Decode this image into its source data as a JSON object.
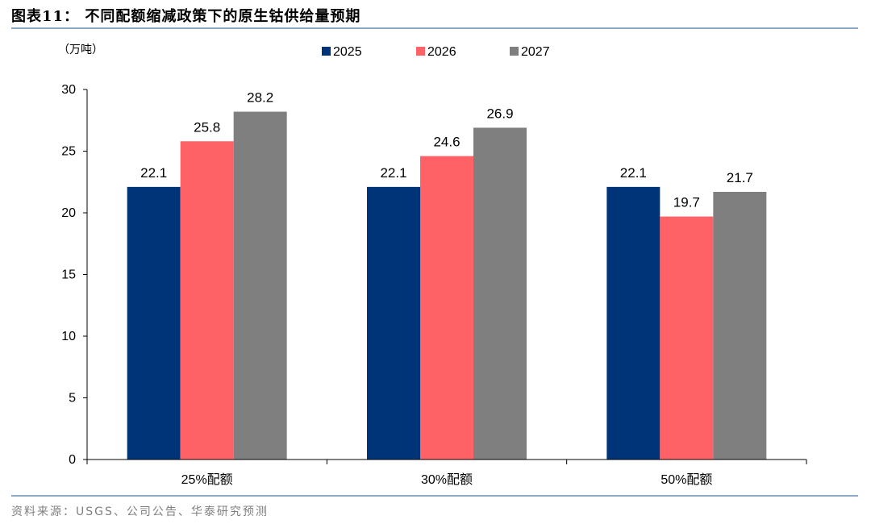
{
  "figure": {
    "title": "图表11：  不同配额缩减政策下的原生钴供给量预期",
    "source": "资料来源：USGS、公司公告、华泰研究预测"
  },
  "chart_data": {
    "type": "bar",
    "unit_label": "（万吨）",
    "categories": [
      "25%配额",
      "30%配额",
      "50%配额"
    ],
    "series": [
      {
        "name": "2025",
        "color": "#003479",
        "values": [
          22.1,
          22.1,
          22.1
        ]
      },
      {
        "name": "2026",
        "color": "#ff6266",
        "values": [
          25.8,
          24.6,
          19.7
        ]
      },
      {
        "name": "2027",
        "color": "#7f7f7f",
        "values": [
          28.2,
          26.9,
          21.7
        ]
      }
    ],
    "ylim": [
      0,
      30
    ],
    "yticks": [
      0,
      5,
      10,
      15,
      20,
      25,
      30
    ],
    "legend_position": "top-center",
    "grid": false,
    "data_labels": true
  }
}
